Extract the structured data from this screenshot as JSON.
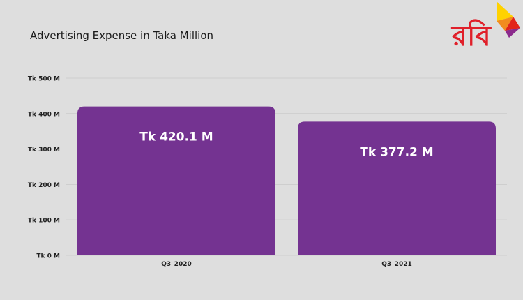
{
  "chart_data": {
    "type": "bar",
    "title": "Advertising Expense in Taka Million",
    "categories": [
      "Q3_2020",
      "Q3_2021"
    ],
    "values": [
      420.1,
      377.2
    ],
    "data_labels": [
      "Tk 420.1 M",
      "Tk 377.2 M"
    ],
    "yticks": [
      "Tk 0 M",
      "Tk 100 M",
      "Tk 200 M",
      "Tk 300 M",
      "Tk 400 M",
      "Tk 500 M"
    ],
    "ytick_values": [
      0,
      100,
      200,
      300,
      400,
      500
    ],
    "ylim": [
      0,
      500
    ],
    "xlabel": "",
    "ylabel": "",
    "grid": true,
    "bar_color": "#743391",
    "grid_color": "#c8c8c8"
  },
  "logo": {
    "text": "রবি",
    "colors": [
      "#ffd200",
      "#f28c1e",
      "#e2231a",
      "#8b2a8c"
    ]
  }
}
